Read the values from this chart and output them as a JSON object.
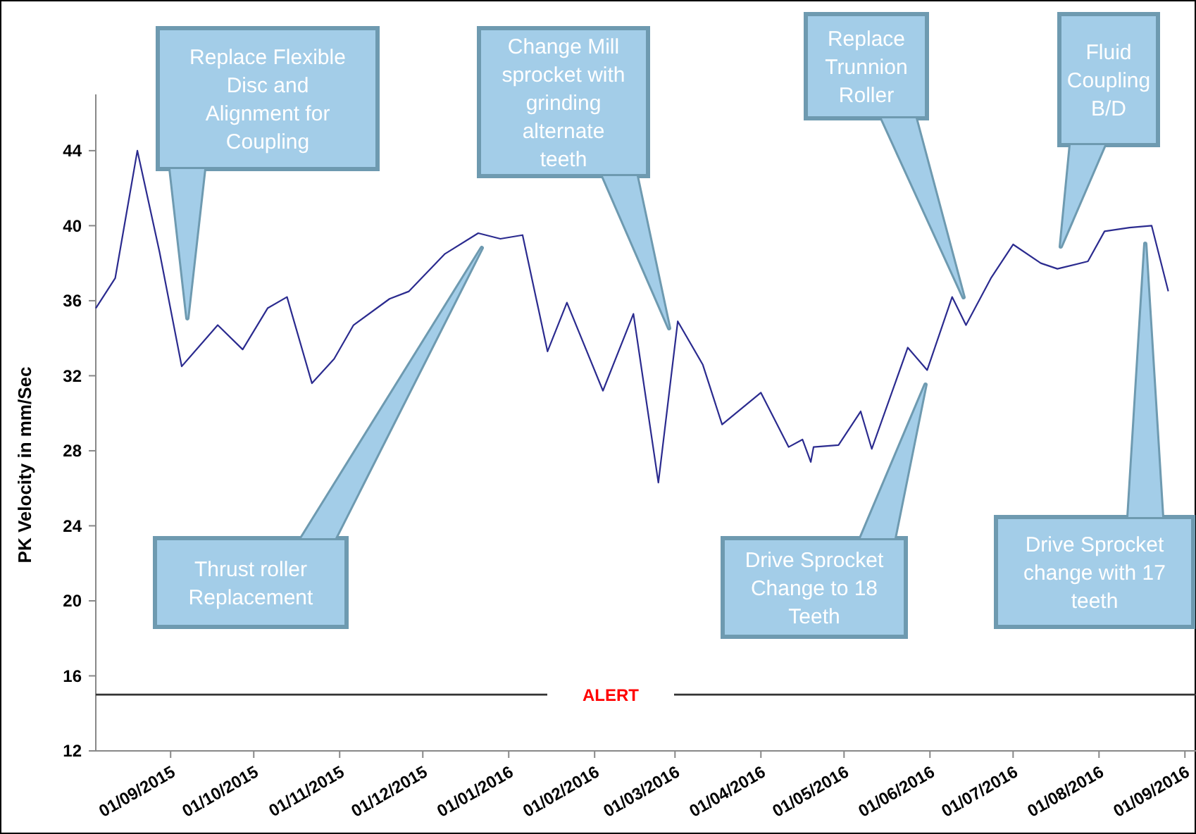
{
  "chart_data": {
    "type": "line",
    "ylabel": "PK Velocity in mm/Sec",
    "x": [
      "2015-08-05",
      "2015-08-12",
      "2015-08-20",
      "2015-08-28",
      "2015-09-05",
      "2015-09-18",
      "2015-09-27",
      "2015-10-06",
      "2015-10-13",
      "2015-10-22",
      "2015-10-30",
      "2015-11-06",
      "2015-11-19",
      "2015-11-26",
      "2015-12-09",
      "2015-12-21",
      "2015-12-29",
      "2016-01-06",
      "2016-01-15",
      "2016-01-22",
      "2016-02-04",
      "2016-02-15",
      "2016-02-24",
      "2016-03-02",
      "2016-03-11",
      "2016-03-18",
      "2016-04-01",
      "2016-04-11",
      "2016-04-16",
      "2016-04-19",
      "2016-04-20",
      "2016-04-29",
      "2016-05-07",
      "2016-05-11",
      "2016-05-24",
      "2016-05-31",
      "2016-06-09",
      "2016-06-14",
      "2016-06-23",
      "2016-07-01",
      "2016-07-11",
      "2016-07-17",
      "2016-07-28",
      "2016-08-03",
      "2016-08-12",
      "2016-08-20",
      "2016-08-26"
    ],
    "series": [
      {
        "color": "#2b2b8f",
        "values": [
          35.6,
          37.2,
          44.0,
          38.6,
          32.5,
          34.7,
          33.4,
          35.6,
          36.2,
          31.6,
          32.9,
          34.7,
          36.1,
          36.5,
          38.5,
          39.6,
          39.3,
          39.5,
          33.3,
          35.9,
          31.2,
          35.3,
          26.3,
          34.9,
          32.6,
          29.4,
          31.1,
          28.2,
          28.6,
          27.4,
          28.2,
          28.3,
          30.1,
          28.1,
          33.5,
          32.3,
          36.2,
          34.7,
          37.2,
          39.0,
          38.0,
          37.7,
          38.1,
          39.7,
          39.9,
          40.0,
          36.5
        ]
      }
    ],
    "xlim": [
      "2015-08-05",
      "2016-09-05"
    ],
    "xticks": [
      {
        "value": "2015-09-01",
        "label": "01/09/2015"
      },
      {
        "value": "2015-10-01",
        "label": "01/10/2015"
      },
      {
        "value": "2015-11-01",
        "label": "01/11/2015"
      },
      {
        "value": "2015-12-01",
        "label": "01/12/2015"
      },
      {
        "value": "2016-01-01",
        "label": "01/01/2016"
      },
      {
        "value": "2016-02-01",
        "label": "01/02/2016"
      },
      {
        "value": "2016-03-01",
        "label": "01/03/2016"
      },
      {
        "value": "2016-04-01",
        "label": "01/04/2016"
      },
      {
        "value": "2016-05-01",
        "label": "01/05/2016"
      },
      {
        "value": "2016-06-01",
        "label": "01/06/2016"
      },
      {
        "value": "2016-07-01",
        "label": "01/07/2016"
      },
      {
        "value": "2016-08-01",
        "label": "01/08/2016"
      },
      {
        "value": "2016-09-01",
        "label": "01/09/2016"
      }
    ],
    "ylim": [
      12,
      47
    ],
    "yticks": [
      12,
      16,
      20,
      24,
      28,
      32,
      36,
      40,
      44
    ],
    "grid": false,
    "marker": "none",
    "line_style": "solid",
    "ref_lines": [
      {
        "axis": "y",
        "value": 15,
        "label": "ALERT",
        "color": "#333333"
      }
    ],
    "annotations": [
      "Replace Flexible Disc and Alignment for Coupling",
      "Thrust roller Replacement",
      "Change Mill sprocket with grinding alternate teeth",
      "Replace Trunnion Roller",
      "Drive Sprocket Change to 18 Teeth",
      "Fluid Coupling B/D",
      "Drive Sprocket change with 17 teeth"
    ]
  }
}
